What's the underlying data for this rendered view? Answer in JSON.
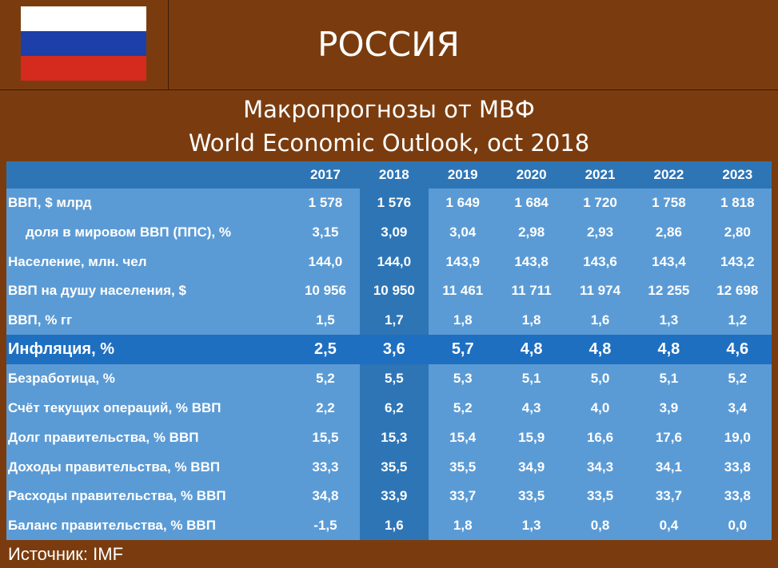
{
  "header": {
    "country": "РОССИЯ",
    "flag_colors": [
      "#ffffff",
      "#1d3fa8",
      "#d42b1e"
    ]
  },
  "title": {
    "line1": "Макропрогнозы от МВФ",
    "line2": "World Economic Outlook, oct 2018"
  },
  "table": {
    "years": [
      "2017",
      "2018",
      "2019",
      "2020",
      "2021",
      "2022",
      "2023"
    ],
    "rows": [
      {
        "label": "ВВП, $ млрд",
        "values": [
          "1 578",
          "1 576",
          "1 649",
          "1 684",
          "1 720",
          "1 758",
          "1 818"
        ]
      },
      {
        "label": "доля в мировом ВВП (ППС), %",
        "values": [
          "3,15",
          "3,09",
          "3,04",
          "2,98",
          "2,93",
          "2,86",
          "2,80"
        ]
      },
      {
        "label": "Население, млн. чел",
        "values": [
          "144,0",
          "144,0",
          "143,9",
          "143,8",
          "143,6",
          "143,4",
          "143,2"
        ]
      },
      {
        "label": "ВВП на душу населения, $",
        "values": [
          "10 956",
          "10 950",
          "11 461",
          "11 711",
          "11 974",
          "12 255",
          "12 698"
        ]
      },
      {
        "label": "ВВП, % гг",
        "values": [
          "1,5",
          "1,7",
          "1,8",
          "1,8",
          "1,6",
          "1,3",
          "1,2"
        ]
      },
      {
        "label": "Инфляция, %",
        "values": [
          "2,5",
          "3,6",
          "5,7",
          "4,8",
          "4,8",
          "4,8",
          "4,6"
        ]
      },
      {
        "label": "Безработица, %",
        "values": [
          "5,2",
          "5,5",
          "5,3",
          "5,1",
          "5,0",
          "5,1",
          "5,2"
        ]
      },
      {
        "label": "Счёт текущих операций, % ВВП",
        "values": [
          "2,2",
          "6,2",
          "5,2",
          "4,3",
          "4,0",
          "3,9",
          "3,4"
        ]
      },
      {
        "label": "Долг правительства, % ВВП",
        "values": [
          "15,5",
          "15,3",
          "15,4",
          "15,9",
          "16,6",
          "17,6",
          "19,0"
        ]
      },
      {
        "label": "Доходы правительства, % ВВП",
        "values": [
          "33,3",
          "35,5",
          "35,5",
          "34,9",
          "34,3",
          "34,1",
          "33,8"
        ]
      },
      {
        "label": "Расходы правительства, % ВВП",
        "values": [
          "34,8",
          "33,9",
          "33,7",
          "33,5",
          "33,5",
          "33,7",
          "33,8"
        ]
      },
      {
        "label": "Баланс правительства, % ВВП",
        "values": [
          "-1,5",
          "1,6",
          "1,8",
          "1,3",
          "0,8",
          "0,4",
          "0,0"
        ]
      }
    ]
  },
  "footer": {
    "source": "Источник: IMF"
  },
  "colors": {
    "background": "#7a3c0f",
    "header_row": "#2e75b6",
    "row": "#5b9bd5",
    "highlight_column": "#2e75b6",
    "inflation_row": "#1f6fc1"
  }
}
